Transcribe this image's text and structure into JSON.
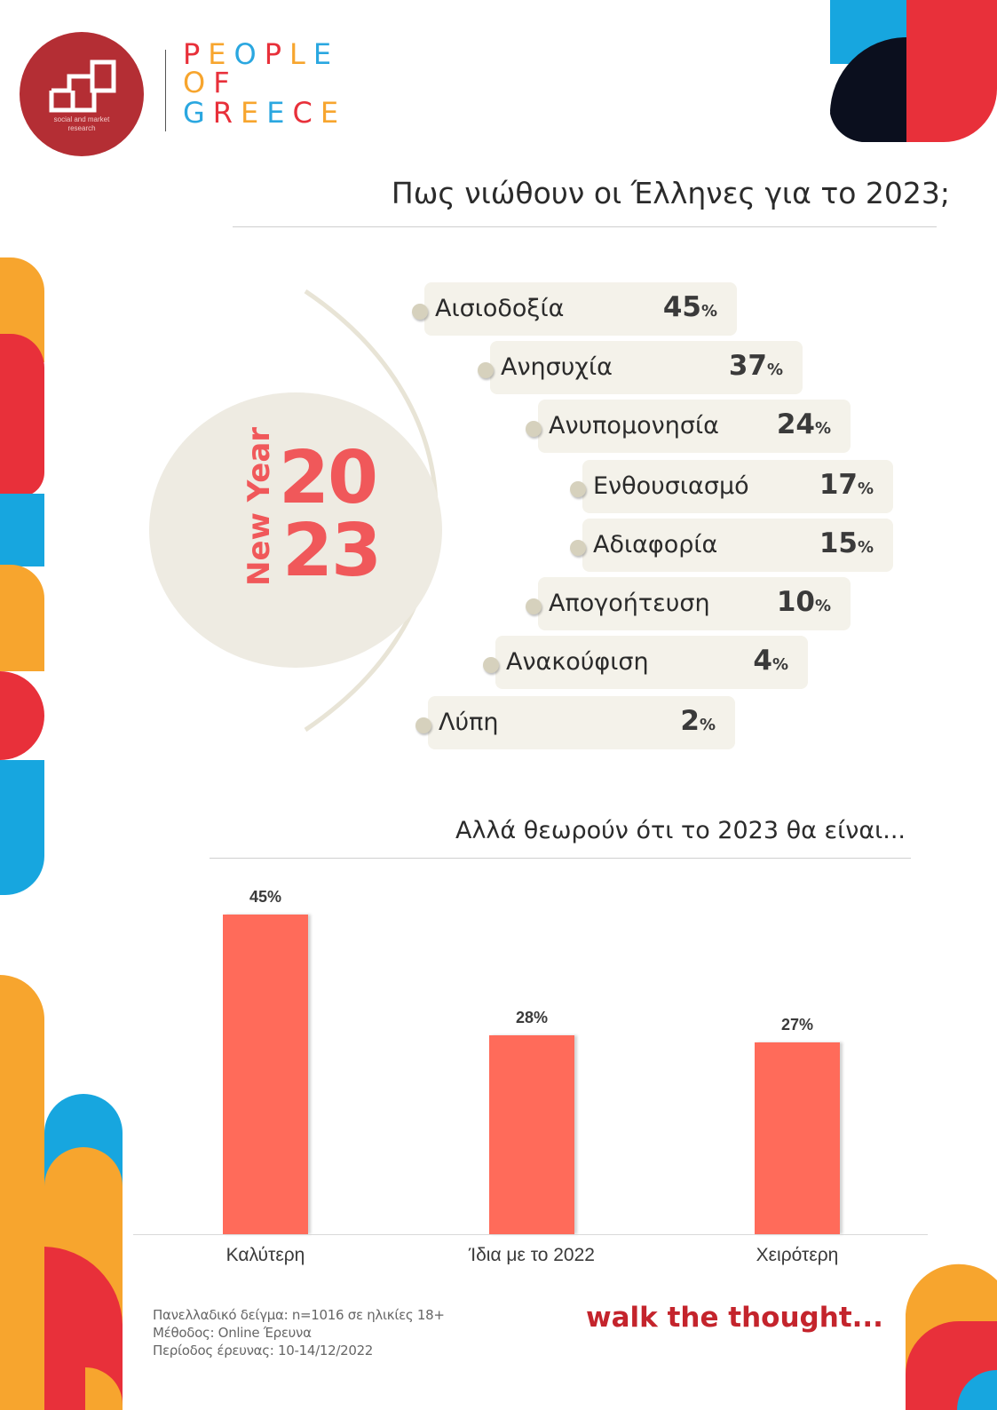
{
  "brand": {
    "logo_subtitle": "social and market research",
    "lines": [
      [
        {
          "t": "P",
          "c": "#e8303a"
        },
        {
          "t": "E",
          "c": "#f7a52e"
        },
        {
          "t": "O",
          "c": "#2aa7e0"
        },
        {
          "t": "P",
          "c": "#e8303a"
        },
        {
          "t": "L",
          "c": "#f7a52e"
        },
        {
          "t": "E",
          "c": "#2aa7e0"
        }
      ],
      [
        {
          "t": "O",
          "c": "#f7a52e"
        },
        {
          "t": "F",
          "c": "#e8303a"
        }
      ],
      [
        {
          "t": "G",
          "c": "#2aa7e0"
        },
        {
          "t": "R",
          "c": "#e8303a"
        },
        {
          "t": "E",
          "c": "#f7a52e"
        },
        {
          "t": "E",
          "c": "#2aa7e0"
        },
        {
          "t": "C",
          "c": "#e8303a"
        },
        {
          "t": "E",
          "c": "#f7a52e"
        }
      ]
    ]
  },
  "title": "Πως νιώθουν οι Έλληνες για το 2023;",
  "badge": {
    "new_year": "New Year",
    "year_top": "20",
    "year_bottom": "23"
  },
  "colors": {
    "accent": "#f0585a",
    "bar": "#ff6b5a",
    "orange": "#f7a52e",
    "red": "#e8303a",
    "blue": "#17a6df",
    "navy": "#0b0f1e"
  },
  "feelings": [
    {
      "label": "Αισιοδοξία",
      "value": "45",
      "unit": "%"
    },
    {
      "label": "Ανησυχία",
      "value": "37",
      "unit": "%"
    },
    {
      "label": "Ανυπομονησία",
      "value": "24",
      "unit": "%"
    },
    {
      "label": "Ενθουσιασμό",
      "value": "17",
      "unit": "%"
    },
    {
      "label": "Αδιαφορία",
      "value": "15",
      "unit": "%"
    },
    {
      "label": "Απογοήτευση",
      "value": "10",
      "unit": "%"
    },
    {
      "label": "Ανακούφιση",
      "value": "4",
      "unit": "%"
    },
    {
      "label": "Λύπη",
      "value": "2",
      "unit": "%"
    }
  ],
  "chart_data": {
    "type": "bar",
    "title": "Αλλά θεωρούν ότι το 2023 θα είναι...",
    "categories": [
      "Καλύτερη",
      "Ίδια με το 2022",
      "Χειρότερη"
    ],
    "values": [
      45,
      28,
      27
    ],
    "value_labels": [
      "45%",
      "28%",
      "27%"
    ],
    "ylim": [
      0,
      50
    ],
    "grid": false,
    "legend": "none"
  },
  "footer": {
    "sample": "Πανελλαδικό δείγμα: n=1016 σε ηλικίες 18+",
    "method": "Μέθοδος: Online Έρευνα",
    "period": "Περίοδος έρευνας: 10-14/12/2022",
    "slogan": "walk the thought..."
  }
}
